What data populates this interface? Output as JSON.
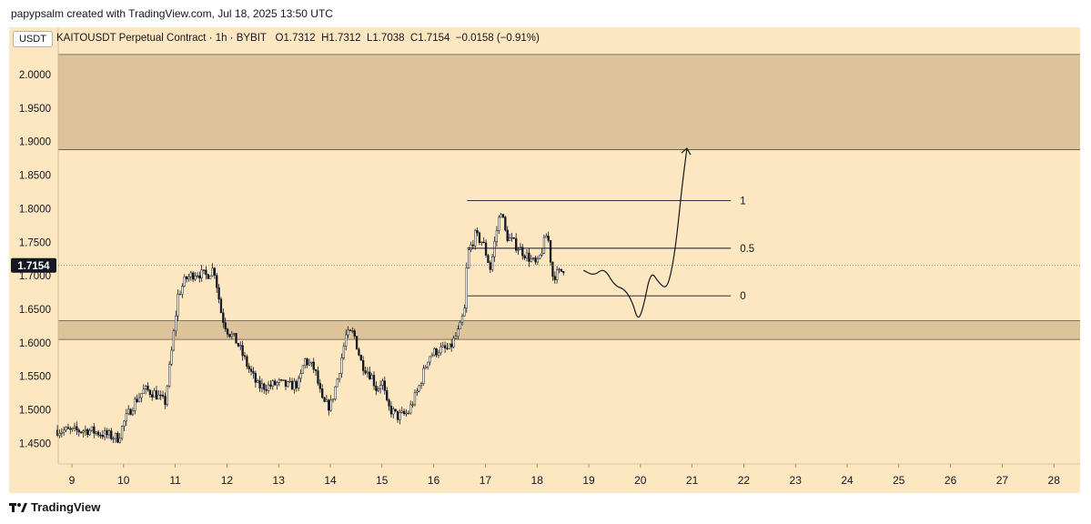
{
  "header": {
    "caption": "papypsalm created with TradingView.com, Jul 18, 2025 13:50 UTC"
  },
  "legend": {
    "currency": "USDT",
    "symbol": "KAITOUSDT Perpetual Contract · 1h · BYBIT",
    "open": "O1.7312",
    "high": "H1.7312",
    "low": "L1.7038",
    "close": "C1.7154",
    "change": "−0.0158 (−0.91%)"
  },
  "footer": {
    "brand": "TradingView",
    "logo_icon": "tradingview-logo-icon"
  },
  "colors": {
    "background": "#fde7c0",
    "zone": "#dcc39a",
    "candle": "#131722",
    "price_label_bg": "#131722"
  },
  "chart_data": {
    "type": "candlestick",
    "y_ticks": [
      "2.0000",
      "1.9500",
      "1.9000",
      "1.8500",
      "1.8000",
      "1.7500",
      "1.7000",
      "1.6500",
      "1.6000",
      "1.5500",
      "1.5000",
      "1.4500"
    ],
    "ylim": [
      1.4,
      2.05
    ],
    "x_ticks": [
      "9",
      "10",
      "11",
      "12",
      "13",
      "14",
      "15",
      "16",
      "17",
      "18",
      "19",
      "20",
      "21",
      "22",
      "23",
      "24",
      "25",
      "26",
      "27",
      "28"
    ],
    "current_price": 1.7154,
    "current_price_label": "1.7154",
    "zones": [
      {
        "from": 1.888,
        "to": 2.03
      },
      {
        "from": 1.605,
        "to": 1.633
      }
    ],
    "fib_levels": [
      {
        "label": "1",
        "price": 1.812
      },
      {
        "label": "0.5",
        "price": 1.741
      },
      {
        "label": "0",
        "price": 1.67
      }
    ],
    "fib_x_range": [
      16.65,
      21.75
    ],
    "trend": [
      [
        8.7,
        1.47
      ],
      [
        9.0,
        1.468
      ],
      [
        9.3,
        1.47
      ],
      [
        9.7,
        1.462
      ],
      [
        9.9,
        1.458
      ],
      [
        10.0,
        1.48
      ],
      [
        10.2,
        1.51
      ],
      [
        10.4,
        1.53
      ],
      [
        10.6,
        1.525
      ],
      [
        10.8,
        1.51
      ],
      [
        10.95,
        1.6
      ],
      [
        11.05,
        1.67
      ],
      [
        11.2,
        1.695
      ],
      [
        11.4,
        1.705
      ],
      [
        11.6,
        1.7
      ],
      [
        11.75,
        1.712
      ],
      [
        11.9,
        1.64
      ],
      [
        12.0,
        1.62
      ],
      [
        12.2,
        1.6
      ],
      [
        12.4,
        1.565
      ],
      [
        12.6,
        1.535
      ],
      [
        12.8,
        1.535
      ],
      [
        13.0,
        1.54
      ],
      [
        13.2,
        1.535
      ],
      [
        13.4,
        1.54
      ],
      [
        13.5,
        1.575
      ],
      [
        13.7,
        1.56
      ],
      [
        13.85,
        1.51
      ],
      [
        14.0,
        1.505
      ],
      [
        14.15,
        1.55
      ],
      [
        14.3,
        1.61
      ],
      [
        14.45,
        1.615
      ],
      [
        14.6,
        1.57
      ],
      [
        14.8,
        1.55
      ],
      [
        14.9,
        1.53
      ],
      [
        15.0,
        1.545
      ],
      [
        15.1,
        1.505
      ],
      [
        15.3,
        1.49
      ],
      [
        15.5,
        1.495
      ],
      [
        15.7,
        1.53
      ],
      [
        15.9,
        1.58
      ],
      [
        16.1,
        1.59
      ],
      [
        16.3,
        1.59
      ],
      [
        16.5,
        1.62
      ],
      [
        16.6,
        1.65
      ],
      [
        16.65,
        1.73
      ],
      [
        16.8,
        1.76
      ],
      [
        16.95,
        1.75
      ],
      [
        17.1,
        1.71
      ],
      [
        17.2,
        1.76
      ],
      [
        17.3,
        1.8
      ],
      [
        17.4,
        1.76
      ],
      [
        17.6,
        1.745
      ],
      [
        17.8,
        1.73
      ],
      [
        18.0,
        1.715
      ],
      [
        18.1,
        1.74
      ],
      [
        18.2,
        1.765
      ],
      [
        18.3,
        1.7
      ],
      [
        18.45,
        1.705
      ],
      [
        18.55,
        1.715
      ]
    ],
    "projection": [
      [
        18.9,
        1.708
      ],
      [
        19.1,
        1.7
      ],
      [
        19.3,
        1.712
      ],
      [
        19.5,
        1.685
      ],
      [
        19.7,
        1.68
      ],
      [
        19.85,
        1.66
      ],
      [
        19.95,
        1.633
      ],
      [
        20.05,
        1.65
      ],
      [
        20.2,
        1.708
      ],
      [
        20.35,
        1.69
      ],
      [
        20.5,
        1.68
      ],
      [
        20.6,
        1.705
      ],
      [
        20.7,
        1.755
      ],
      [
        20.8,
        1.83
      ],
      [
        20.9,
        1.89
      ]
    ]
  }
}
